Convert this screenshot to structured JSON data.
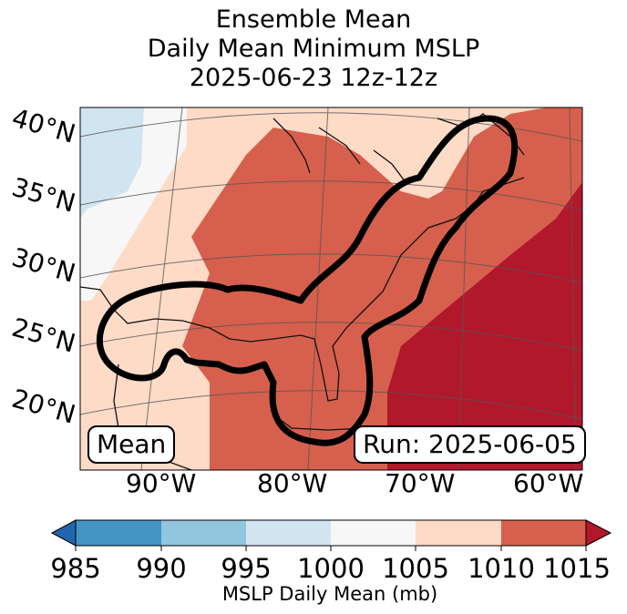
{
  "title": {
    "line1": "Ensemble Mean",
    "line2": "Daily Mean Minimum MSLP",
    "line3": "2025-06-23 12z-12z"
  },
  "map": {
    "lat_labels": [
      "40°N",
      "35°N",
      "30°N",
      "25°N",
      "20°N"
    ],
    "lon_labels": [
      "90°W",
      "80°W",
      "70°W",
      "60°W"
    ],
    "mean_label": "Mean",
    "run_label": "Run: 2025-06-05"
  },
  "colorbar": {
    "ticks": [
      "985",
      "990",
      "995",
      "1000",
      "1005",
      "1010",
      "1015"
    ],
    "colors": [
      "#2166ac",
      "#4393c3",
      "#92c5de",
      "#d1e5f0",
      "#f7f7f7",
      "#fddbc7",
      "#d6604d",
      "#b2182b"
    ],
    "label": "MSLP Daily Mean (mb)"
  }
}
